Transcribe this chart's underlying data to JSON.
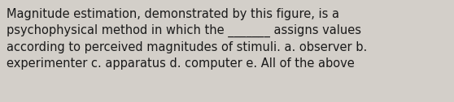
{
  "text": "Magnitude estimation, demonstrated by this figure, is a\npsychophysical method in which the _______ assigns values\naccording to perceived magnitudes of stimuli. a. observer b.\nexperimenter c. apparatus d. computer e. All of the above",
  "background_color": "#d3cfc9",
  "text_color": "#1a1a1a",
  "font_size": 10.5,
  "fig_width": 5.58,
  "fig_height": 1.26,
  "dpi": 100
}
